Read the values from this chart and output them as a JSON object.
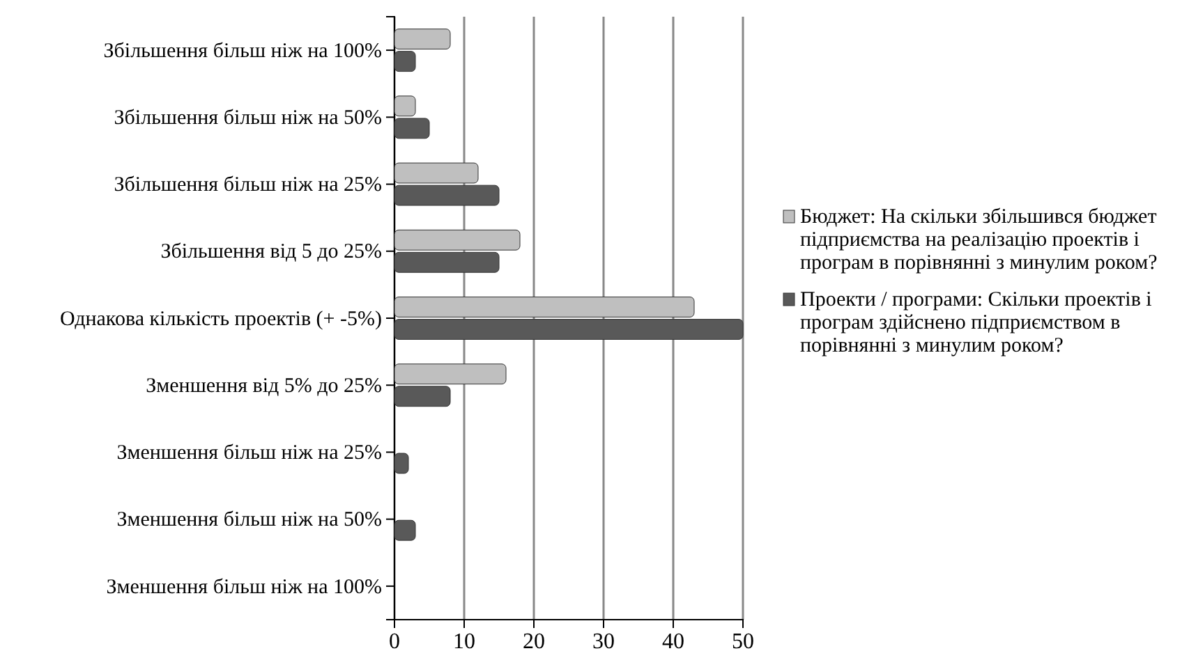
{
  "chart_data": {
    "type": "bar",
    "orientation": "horizontal",
    "categories": [
      "Збільшення більш ніж на 100%",
      "Збільшення більш ніж на 50%",
      "Збільшення більш ніж на 25%",
      "Збільшення від 5 до 25%",
      "Однакова кількість проектів (+ -5%)",
      "Зменшення від 5% до 25%",
      "Зменшення більш ніж на 25%",
      "Зменшення більш ніж на 50%",
      "Зменшення більш ніж на 100%"
    ],
    "series": [
      {
        "name": "Бюджет: На скільки збільшився бюджет підприємства на реалізацію проектів і програм в порівнянні з минулим роком?",
        "color": "#bfbfbf",
        "values": [
          8,
          3,
          12,
          18,
          43,
          16,
          0,
          0,
          0
        ]
      },
      {
        "name": "Проекти / програми: Скільки проектів і програм здійснено підприємством в порівнянні з минулим роком?",
        "color": "#595959",
        "values": [
          3,
          5,
          15,
          15,
          50,
          8,
          2,
          3,
          0
        ]
      }
    ],
    "xlim": [
      0,
      50
    ],
    "xticks": [
      0,
      10,
      20,
      30,
      40,
      50
    ],
    "grid": "x",
    "legend": "right"
  }
}
